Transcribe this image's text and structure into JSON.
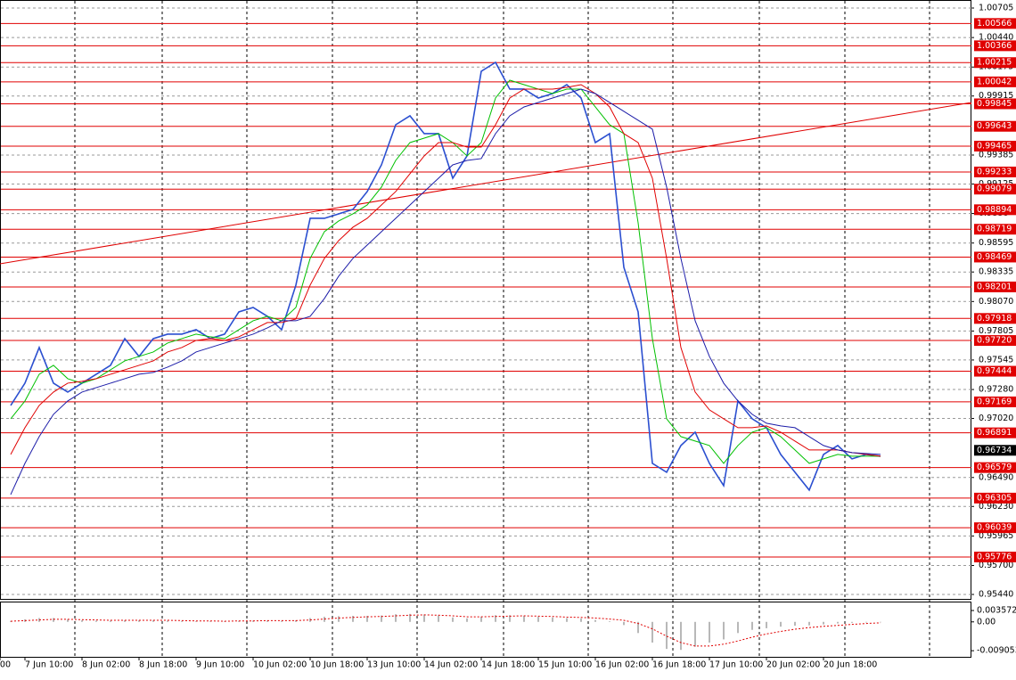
{
  "chart_data": {
    "type": "line",
    "grid": true,
    "categories": [
      "00",
      null,
      null,
      null,
      "7 Jun 10:00",
      null,
      null,
      null,
      "8 Jun 02:00",
      null,
      null,
      null,
      "8 Jun 18:00",
      null,
      null,
      null,
      "9 Jun 10:00",
      null,
      null,
      null,
      "10 Jun 02:00",
      null,
      null,
      null,
      "10 Jun 18:00",
      null,
      null,
      null,
      "13 Jun 10:00",
      null,
      null,
      null,
      "14 Jun 02:00",
      null,
      null,
      null,
      "14 Jun 18:00",
      null,
      null,
      null,
      "15 Jun 10:00",
      null,
      null,
      null,
      "16 Jun 02:00",
      null,
      null,
      null,
      "16 Jun 18:00",
      null,
      null,
      null,
      "17 Jun 10:00",
      null,
      null,
      null,
      "20 Jun 02:00",
      null,
      null,
      null,
      "20 Jun 18:00",
      null,
      null,
      null,
      null,
      null
    ],
    "series": [
      {
        "color": "#2b4fd0",
        "values": [
          null,
          null,
          null,
          0.97137,
          0.97337,
          0.97657,
          0.97337,
          0.97257,
          0.97337,
          0.97417,
          0.97497,
          0.97737,
          0.97577,
          0.97737,
          0.97777,
          0.97777,
          0.97817,
          0.97737,
          0.97777,
          0.97977,
          0.98017,
          0.97937,
          0.97817,
          0.98217,
          0.98817,
          0.98817,
          0.98857,
          0.98897,
          0.99057,
          0.99297,
          0.99657,
          0.99737,
          0.99577,
          0.99577,
          0.99177,
          0.99377,
          1.00137,
          1.00217,
          0.99977,
          0.99977,
          0.99897,
          0.99937,
          1.00017,
          0.99897,
          0.99497,
          0.99577,
          0.98377,
          0.97977,
          0.96617,
          0.96537,
          0.96777,
          0.96897,
          0.96617,
          0.96417,
          0.97177,
          0.97017,
          0.96937,
          0.96697,
          0.96537,
          0.96377,
          0.96697,
          0.96777,
          0.96657,
          0.96697,
          0.96681,
          null
        ]
      },
      {
        "color": "#00c000",
        "values": [
          null,
          null,
          null,
          0.97017,
          0.97177,
          0.97417,
          0.97497,
          0.97377,
          0.97337,
          0.97377,
          0.97457,
          0.97537,
          0.97577,
          0.97617,
          0.97697,
          0.97737,
          0.97777,
          0.97753,
          0.97737,
          0.97817,
          0.97897,
          0.97937,
          0.97897,
          0.98017,
          0.98457,
          0.98697,
          0.98793,
          0.98857,
          0.98937,
          0.99097,
          0.99337,
          0.99497,
          0.99537,
          0.99577,
          0.99497,
          0.99377,
          0.99497,
          0.99897,
          1.00057,
          1.00017,
          0.99977,
          0.99937,
          0.99977,
          0.99977,
          0.99817,
          0.99657,
          0.99577,
          0.98777,
          0.97737,
          0.97017,
          0.96857,
          0.96817,
          0.96777,
          0.96617,
          0.96777,
          0.96897,
          0.96937,
          0.96857,
          0.96737,
          0.96617,
          0.96657,
          0.96697,
          0.96681,
          0.96681,
          0.96681,
          null
        ]
      },
      {
        "color": "#e00000",
        "values": [
          null,
          null,
          null,
          0.96697,
          0.96937,
          0.97137,
          0.97257,
          0.97337,
          0.97353,
          0.97377,
          0.97417,
          0.97457,
          0.97497,
          0.97537,
          0.97617,
          0.97657,
          0.97721,
          0.97737,
          0.97721,
          0.97753,
          0.97817,
          0.97881,
          0.97881,
          0.97913,
          0.98217,
          0.98457,
          0.98617,
          0.98737,
          0.98817,
          0.98937,
          0.99057,
          0.99217,
          0.99377,
          0.99497,
          0.99497,
          0.99457,
          0.99457,
          0.99657,
          0.99897,
          0.99977,
          0.99977,
          0.99977,
          0.99993,
          1.00017,
          0.99937,
          0.99817,
          0.99577,
          0.99497,
          0.99177,
          0.98457,
          0.97657,
          0.97257,
          0.97097,
          0.97017,
          0.96937,
          0.96937,
          0.96953,
          0.96897,
          0.96817,
          0.96737,
          0.96737,
          0.96737,
          0.96713,
          0.96697,
          0.96681,
          null
        ]
      },
      {
        "color": "#1c1ca8",
        "values": [
          null,
          null,
          null,
          0.96337,
          0.96617,
          0.96857,
          0.97057,
          0.97177,
          0.97257,
          0.97297,
          0.97337,
          0.97377,
          0.97417,
          0.97433,
          0.97481,
          0.97537,
          0.97617,
          0.97657,
          0.97697,
          0.97737,
          0.97777,
          0.97833,
          0.97897,
          0.97897,
          0.97937,
          0.98097,
          0.98297,
          0.98457,
          0.98577,
          0.98697,
          0.98817,
          0.98937,
          0.99057,
          0.99177,
          0.99297,
          0.99337,
          0.99353,
          0.99577,
          0.99737,
          0.99817,
          0.99857,
          0.99897,
          0.99937,
          0.99977,
          0.99937,
          0.99857,
          0.99777,
          0.99697,
          0.99617,
          0.99097,
          0.98457,
          0.97897,
          0.97577,
          0.97337,
          0.97177,
          0.97057,
          0.96977,
          0.96953,
          0.96937,
          0.96857,
          0.96777,
          0.96737,
          0.96713,
          0.96705,
          0.96697,
          null
        ]
      }
    ],
    "ylim": [
      0.954,
      1.00777
    ],
    "yticks": [
      1.00705,
      {
        "value": 1.0044,
        "label": "1.00440"
      },
      1.00175,
      0.99915,
      0.99385,
      0.99125,
      0.9886,
      0.98595,
      0.98335,
      {
        "value": 0.9807,
        "label": "0.98070"
      },
      0.97805,
      0.97545,
      {
        "value": 0.9728,
        "label": "0.97280"
      },
      {
        "value": 0.9702,
        "label": "0.97020"
      },
      {
        "value": 0.9649,
        "label": "0.96490"
      },
      {
        "value": 0.9623,
        "label": "0.96230"
      },
      0.95965,
      {
        "value": 0.957,
        "label": "0.95700"
      },
      {
        "value": 0.9544,
        "label": "0.95440"
      }
    ],
    "levels": [
      1.00566,
      1.00366,
      1.00215,
      1.00042,
      0.99845,
      0.99643,
      0.99465,
      0.99233,
      0.99079,
      0.98894,
      0.98719,
      0.98469,
      0.98201,
      0.97918,
      {
        "value": 0.9772,
        "label": "0.97720"
      },
      0.97444,
      0.97169,
      0.96891,
      0.96579,
      0.96305,
      0.96039,
      0.95776
    ],
    "level_color": "#e00000",
    "current_price": 0.96734,
    "trendline": [
      0.98409,
      0.99857
    ],
    "indicator": {
      "type": "bar",
      "series": [
        {
          "color": "#b8b8b8",
          "values": [
            null,
            null,
            null,
            0.0003,
            0.0008,
            0.0012,
            0.0012,
            0.0008,
            0.0005,
            0.0004,
            0.0004,
            0.0005,
            0.0005,
            0.0005,
            0.0004,
            0.0003,
            0.0002,
            0.0002,
            0.0002,
            0.0003,
            0.0004,
            0.0004,
            0.0003,
            0.0005,
            0.0012,
            0.0016,
            0.0018,
            0.0019,
            0.0019,
            0.002,
            0.0024,
            0.0025,
            0.0023,
            0.002,
            0.0014,
            0.0011,
            0.0016,
            0.0021,
            0.0021,
            0.0019,
            0.0016,
            0.0014,
            0.0012,
            0.0011,
            0.0006,
            0.0002,
            -0.001,
            -0.0035,
            -0.0065,
            -0.0085,
            -0.0088,
            -0.0078,
            -0.0065,
            -0.0055,
            -0.0035,
            -0.0025,
            -0.002,
            -0.0015,
            -0.0012,
            -0.0011,
            -0.0008,
            -0.0005,
            -0.0003,
            -0.0002,
            -0.0001,
            null
          ]
        },
        {
          "color": "#e00000",
          "values": [
            null,
            null,
            null,
            0.0002,
            0.0004,
            0.0006,
            0.0008,
            0.0008,
            0.0007,
            0.0006,
            0.0005,
            0.0005,
            0.0005,
            0.0005,
            0.0005,
            0.0004,
            0.0003,
            0.0003,
            0.0002,
            0.0003,
            0.0003,
            0.0004,
            0.0004,
            0.0004,
            0.0006,
            0.0009,
            0.0012,
            0.0014,
            0.0016,
            0.0017,
            0.0019,
            0.0021,
            0.0022,
            0.0021,
            0.0019,
            0.0016,
            0.0016,
            0.0017,
            0.0018,
            0.0019,
            0.0018,
            0.0017,
            0.0015,
            0.0014,
            0.0012,
            0.0009,
            0.0005,
            -0.0005,
            -0.0022,
            -0.0045,
            -0.0065,
            -0.0076,
            -0.0076,
            -0.007,
            -0.006,
            -0.0048,
            -0.0038,
            -0.003,
            -0.0023,
            -0.0018,
            -0.0014,
            -0.0011,
            -0.0008,
            -0.0005,
            -0.0003,
            null
          ]
        }
      ],
      "ylim": [
        -0.0107,
        0.0061
      ],
      "yticks": [
        0.003572,
        {
          "value": 0,
          "label": "0.00"
        },
        -0.009053
      ]
    }
  }
}
